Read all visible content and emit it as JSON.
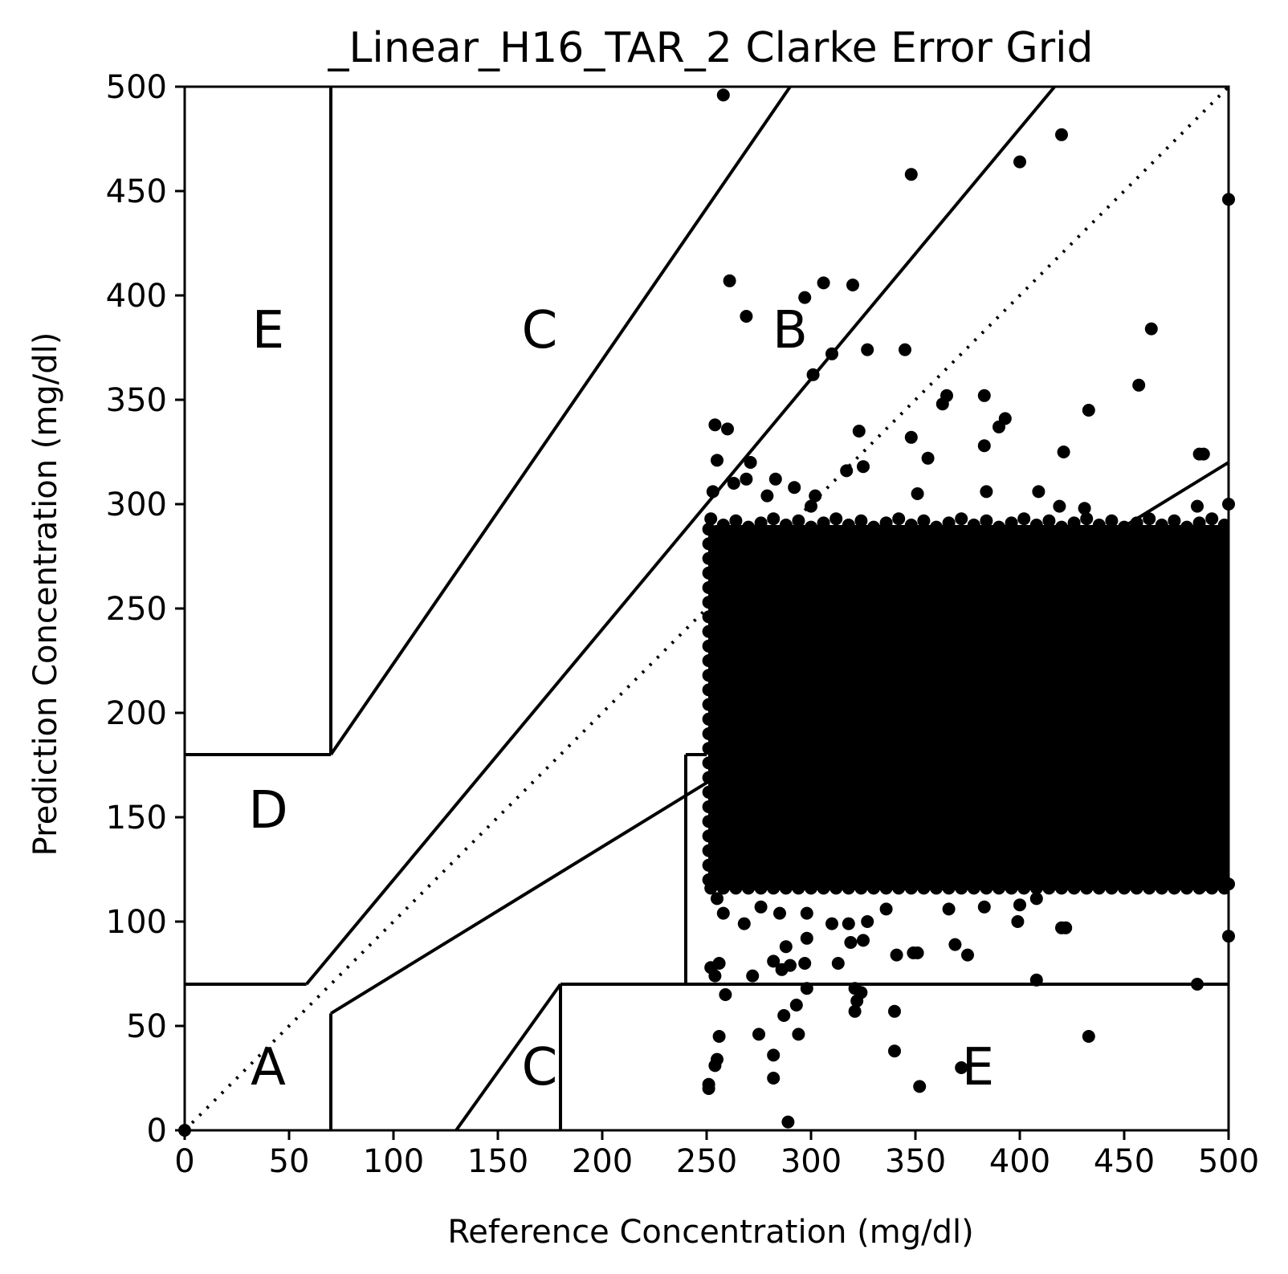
{
  "chart_data": {
    "type": "scatter",
    "title": "_Linear_H16_TAR_2 Clarke Error Grid",
    "xlabel": "Reference Concentration (mg/dl)",
    "ylabel": "Prediction Concentration (mg/dl)",
    "xlim": [
      0,
      500
    ],
    "ylim": [
      0,
      500
    ],
    "xticks": [
      "0",
      "50",
      "100",
      "150",
      "200",
      "250",
      "300",
      "350",
      "400",
      "450",
      "500"
    ],
    "yticks": [
      "0",
      "50",
      "100",
      "150",
      "200",
      "250",
      "300",
      "350",
      "400",
      "450",
      "500"
    ],
    "grid": false,
    "legend": "none",
    "dense_cloud": {
      "x_range": [
        250,
        500
      ],
      "y_range": [
        115,
        290
      ]
    },
    "zone_labels": [
      {
        "text": "E",
        "x": 40,
        "y": 375
      },
      {
        "text": "C",
        "x": 170,
        "y": 375
      },
      {
        "text": "B",
        "x": 290,
        "y": 375
      },
      {
        "text": "D",
        "x": 40,
        "y": 145
      },
      {
        "text": "A",
        "x": 40,
        "y": 22
      },
      {
        "text": "C",
        "x": 170,
        "y": 22
      },
      {
        "text": "E",
        "x": 380,
        "y": 22
      }
    ],
    "zone_lines": [
      {
        "style": "solid",
        "points": [
          [
            0,
            70
          ],
          [
            58.33,
            70
          ]
        ]
      },
      {
        "style": "solid",
        "points": [
          [
            58.33,
            70
          ],
          [
            70,
            84
          ]
        ]
      },
      {
        "style": "solid",
        "points": [
          [
            70,
            84
          ],
          [
            416.67,
            500
          ]
        ]
      },
      {
        "style": "solid",
        "points": [
          [
            70,
            0
          ],
          [
            70,
            56
          ]
        ]
      },
      {
        "style": "solid",
        "points": [
          [
            70,
            56
          ],
          [
            500,
            320
          ]
        ]
      },
      {
        "style": "solid",
        "points": [
          [
            70,
            180
          ],
          [
            70,
            500
          ]
        ]
      },
      {
        "style": "solid",
        "points": [
          [
            0,
            180
          ],
          [
            70,
            180
          ]
        ]
      },
      {
        "style": "solid",
        "points": [
          [
            70,
            180
          ],
          [
            290,
            500
          ]
        ]
      },
      {
        "style": "solid",
        "points": [
          [
            130,
            0
          ],
          [
            180,
            70
          ]
        ]
      },
      {
        "style": "solid",
        "points": [
          [
            180,
            0
          ],
          [
            180,
            70
          ]
        ]
      },
      {
        "style": "solid",
        "points": [
          [
            180,
            70
          ],
          [
            500,
            70
          ]
        ]
      },
      {
        "style": "solid",
        "points": [
          [
            240,
            70
          ],
          [
            240,
            180
          ]
        ]
      },
      {
        "style": "solid",
        "points": [
          [
            240,
            180
          ],
          [
            250,
            180
          ]
        ]
      },
      {
        "style": "dotted",
        "points": [
          [
            0,
            0
          ],
          [
            500,
            500
          ]
        ]
      }
    ],
    "points": [
      [
        258,
        496
      ],
      [
        420,
        477
      ],
      [
        400,
        464
      ],
      [
        348,
        458
      ],
      [
        500,
        446
      ],
      [
        261,
        407
      ],
      [
        306,
        406
      ],
      [
        320,
        405
      ],
      [
        297,
        399
      ],
      [
        269,
        390
      ],
      [
        463,
        384
      ],
      [
        310,
        372
      ],
      [
        327,
        374
      ],
      [
        345,
        374
      ],
      [
        301,
        362
      ],
      [
        457,
        357
      ],
      [
        365,
        352
      ],
      [
        383,
        352
      ],
      [
        363,
        348
      ],
      [
        433,
        345
      ],
      [
        393,
        341
      ],
      [
        390,
        337
      ],
      [
        254,
        338
      ],
      [
        260,
        336
      ],
      [
        323,
        335
      ],
      [
        348,
        332
      ],
      [
        383,
        328
      ],
      [
        421,
        325
      ],
      [
        486,
        324
      ],
      [
        488,
        324
      ],
      [
        255,
        321
      ],
      [
        356,
        322
      ],
      [
        271,
        320
      ],
      [
        317,
        316
      ],
      [
        325,
        318
      ],
      [
        269,
        312
      ],
      [
        283,
        312
      ],
      [
        263,
        310
      ],
      [
        292,
        308
      ],
      [
        253,
        306
      ],
      [
        302,
        304
      ],
      [
        279,
        304
      ],
      [
        384,
        306
      ],
      [
        409,
        306
      ],
      [
        351,
        305
      ],
      [
        300,
        299
      ],
      [
        419,
        299
      ],
      [
        431,
        298
      ],
      [
        485,
        299
      ],
      [
        500,
        300
      ],
      [
        255,
        111
      ],
      [
        258,
        104
      ],
      [
        268,
        99
      ],
      [
        276,
        107
      ],
      [
        285,
        104
      ],
      [
        298,
        104
      ],
      [
        310,
        99
      ],
      [
        318,
        99
      ],
      [
        327,
        100
      ],
      [
        336,
        106
      ],
      [
        366,
        106
      ],
      [
        383,
        107
      ],
      [
        400,
        108
      ],
      [
        408,
        111
      ],
      [
        422,
        97
      ],
      [
        420,
        97
      ],
      [
        487,
        117
      ],
      [
        500,
        118
      ],
      [
        500,
        93
      ],
      [
        399,
        100
      ],
      [
        282,
        81
      ],
      [
        297,
        80
      ],
      [
        298,
        92
      ],
      [
        288,
        88
      ],
      [
        290,
        79
      ],
      [
        319,
        90
      ],
      [
        325,
        91
      ],
      [
        313,
        80
      ],
      [
        341,
        84
      ],
      [
        349,
        85
      ],
      [
        351,
        85
      ],
      [
        369,
        89
      ],
      [
        375,
        84
      ],
      [
        286,
        77
      ],
      [
        256,
        80
      ],
      [
        254,
        74
      ],
      [
        252,
        78
      ],
      [
        272,
        74
      ],
      [
        298,
        68
      ],
      [
        321,
        68
      ],
      [
        324,
        66
      ],
      [
        322,
        62
      ],
      [
        321,
        57
      ],
      [
        340,
        57
      ],
      [
        287,
        55
      ],
      [
        259,
        65
      ],
      [
        256,
        45
      ],
      [
        275,
        46
      ],
      [
        294,
        46
      ],
      [
        293,
        60
      ],
      [
        282,
        36
      ],
      [
        255,
        34
      ],
      [
        254,
        31
      ],
      [
        340,
        38
      ],
      [
        282,
        25
      ],
      [
        251,
        22
      ],
      [
        251,
        20
      ],
      [
        352,
        21
      ],
      [
        372,
        30
      ],
      [
        433,
        45
      ],
      [
        485,
        70
      ],
      [
        408,
        72
      ],
      [
        289,
        4
      ],
      [
        0,
        0
      ]
    ]
  }
}
